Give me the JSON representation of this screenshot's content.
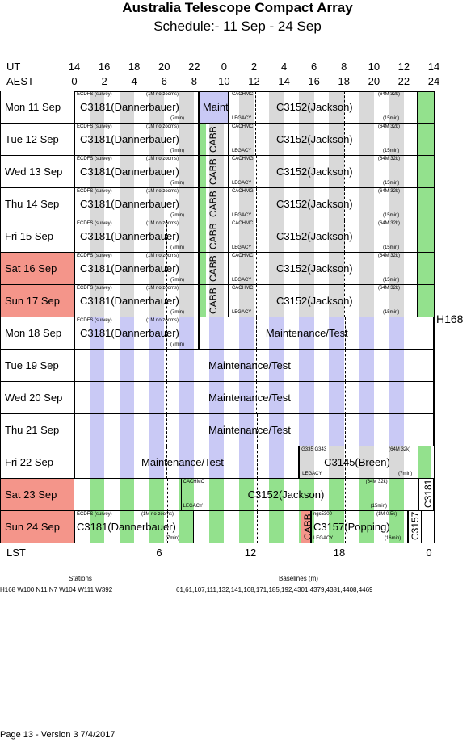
{
  "header": {
    "title": "Australia Telescope Compact Array",
    "subtitle": "Schedule:- 11 Sep - 24 Sep"
  },
  "axes": {
    "ut_label": "UT",
    "aest_label": "AEST",
    "lst_label": "LST",
    "ut_ticks": [
      "14",
      "16",
      "18",
      "20",
      "22",
      "0",
      "2",
      "4",
      "6",
      "8",
      "10",
      "12",
      "14"
    ],
    "aest_ticks": [
      "0",
      "2",
      "4",
      "6",
      "8",
      "10",
      "12",
      "14",
      "16",
      "18",
      "20",
      "22",
      "24"
    ],
    "lst_ticks": [
      "6",
      "12",
      "18",
      "0"
    ]
  },
  "days": [
    {
      "label": "Mon  11 Sep",
      "weekend": false
    },
    {
      "label": "Tue   12 Sep",
      "weekend": false
    },
    {
      "label": "Wed  13 Sep",
      "weekend": false
    },
    {
      "label": "Thu   14 Sep",
      "weekend": false
    },
    {
      "label": "Fri     15 Sep",
      "weekend": false
    },
    {
      "label": "Sat    16 Sep",
      "weekend": true
    },
    {
      "label": "Sun   17 Sep",
      "weekend": true
    },
    {
      "label": "Mon  18 Sep",
      "weekend": false
    },
    {
      "label": "Tue    19 Sep",
      "weekend": false
    },
    {
      "label": "Wed  20 Sep",
      "weekend": false
    },
    {
      "label": "Thu   21 Sep",
      "weekend": false
    },
    {
      "label": "Fri     22 Sep",
      "weekend": false
    },
    {
      "label": "Sat    23 Sep",
      "weekend": true
    },
    {
      "label": "Sun   24 Sep",
      "weekend": true
    }
  ],
  "projects": {
    "c3181": "C3181(Dannerbauer)",
    "c3152": "C3152(Jackson)",
    "maint": "Maint",
    "maint_test": "Maintenance/Test",
    "cabb": "CABB",
    "c3145": "C3145(Breen)",
    "c3157": "C3157(Popping)",
    "c3157_short": "C3157",
    "c3181_short": "C3181"
  },
  "notes": {
    "ecdfs": "ECDFS (survey)",
    "nozoom": "(1M no zooms)",
    "min7": "(7min)",
    "cachmc": "CACHMC",
    "cachmg": "CACHMG",
    "legacy": "LEGACY",
    "m64": "(64M 32k)",
    "min15": "(15min)",
    "g335": "G335 G343",
    "min16": "(16min)",
    "ngc": "ngc5300",
    "m1": "(1M 0.5k)"
  },
  "array": "H168",
  "footer": {
    "stations_label": "Stations",
    "stations": "H168  W100 N11 N7 W104 W111 W392",
    "baselines_label": "Baselines (m)",
    "baselines": "61,61,107,111,132,141,168,171,185,192,4301,4379,4381,4408,4469",
    "page": "Page 13 - Version 3  7/4/2017"
  }
}
